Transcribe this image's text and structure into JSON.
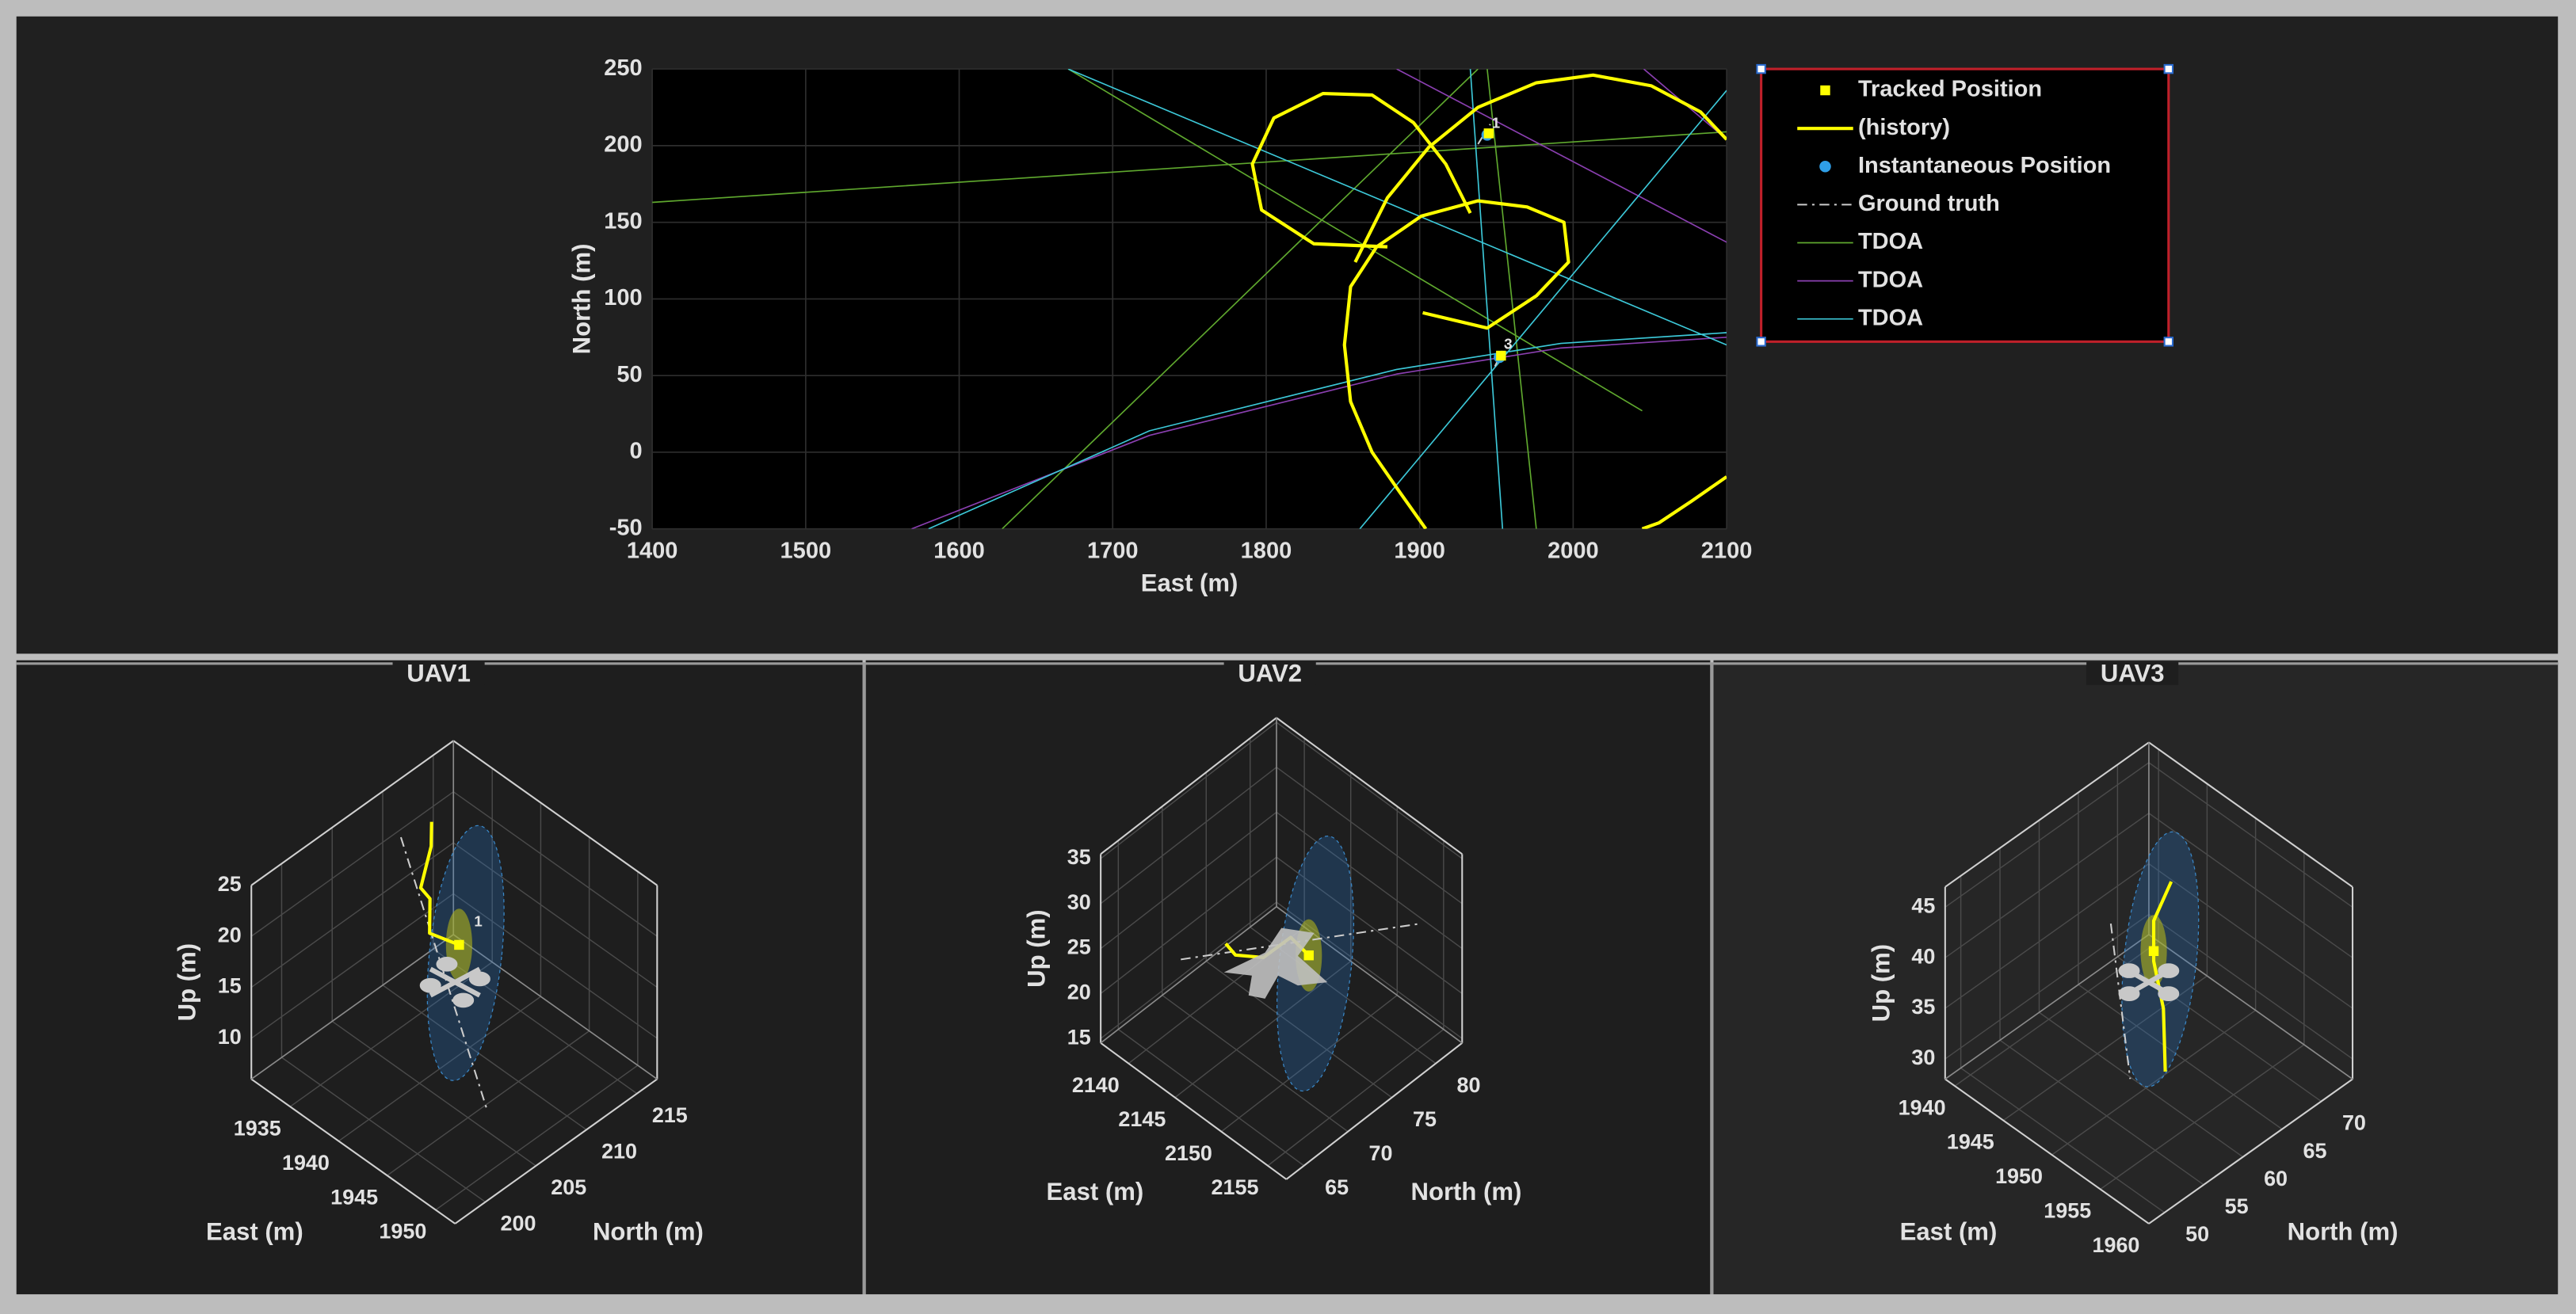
{
  "chart_data": [
    {
      "type": "line",
      "xlabel": "East (m)",
      "ylabel": "North (m)",
      "xlim": [
        1400,
        2100
      ],
      "ylim": [
        -50,
        250
      ],
      "xticks": [
        1400,
        1500,
        1600,
        1700,
        1800,
        1900,
        2000,
        2100
      ],
      "yticks": [
        -50,
        0,
        50,
        100,
        150,
        200,
        250
      ],
      "grid": true,
      "legend": "outside-right",
      "series": [
        {
          "name": "Tracked Position",
          "color": "#ffff00",
          "style": "square",
          "x": [
            1945,
            1953
          ],
          "y": [
            208,
            63
          ]
        },
        {
          "name": "(history)",
          "color": "#ffff00",
          "style": "line",
          "x": [
            1902,
            1944,
            1976,
            1997,
            1994,
            1970,
            1938,
            1901,
            1872,
            1855,
            1851,
            1855,
            1869,
            1887,
            1904,
            null,
            2100,
            2077,
            2056,
            2045,
            null,
            1879,
            1831,
            1797,
            1791,
            1805,
            1837,
            1869,
            1896,
            1917,
            1933,
            null,
            1858,
            1879,
            1906,
            1938,
            1976,
            2013,
            2051,
            2083,
            2100
          ],
          "y": [
            91,
            81,
            102,
            124,
            150,
            160,
            164,
            154,
            134,
            108,
            70,
            33,
            0,
            -26,
            -50,
            null,
            -16,
            -32,
            -46,
            -50,
            null,
            134,
            136,
            158,
            188,
            218,
            234,
            233,
            215,
            188,
            156,
            null,
            124,
            166,
            199,
            225,
            241,
            246,
            239,
            222,
            204
          ]
        },
        {
          "name": "Instantaneous Position",
          "color": "#2f9fe8",
          "style": "circle",
          "x": [
            1944,
            1952
          ],
          "y": [
            207,
            62
          ]
        },
        {
          "name": "Ground truth",
          "color": "#cccccc",
          "style": "dashdot",
          "x": [
            1938,
            1946,
            null,
            1949,
            1956
          ],
          "y": [
            201,
            214,
            null,
            56,
            70
          ]
        },
        {
          "name": "TDOA",
          "color": "#5fa82e",
          "style": "thin",
          "x": [
            1400,
            2100,
            null,
            1628,
            1938,
            null,
            1671,
            2045,
            null,
            1944,
            1976
          ],
          "y": [
            163,
            209,
            null,
            -50,
            250,
            null,
            250,
            27,
            null,
            250,
            -50
          ]
        },
        {
          "name": "TDOA",
          "color": "#8a3fb0",
          "style": "thin",
          "x": [
            1569,
            1724,
            1885,
            1992,
            2100,
            null,
            1885,
            2100,
            null,
            2046,
            2100
          ],
          "y": [
            -50,
            11,
            51,
            68,
            75,
            null,
            250,
            137,
            null,
            250,
            204
          ]
        },
        {
          "name": "TDOA",
          "color": "#3cc8d8",
          "style": "thin",
          "x": [
            1580,
            1724,
            1885,
            1992,
            2100,
            null,
            1671,
            2100,
            null,
            1861,
            2100,
            null,
            1933,
            1954
          ],
          "y": [
            -50,
            14,
            54,
            71,
            78,
            null,
            250,
            70,
            null,
            -50,
            236,
            null,
            250,
            -50
          ]
        }
      ],
      "annotations": [
        {
          "text": "1",
          "x": 1947,
          "y": 214
        },
        {
          "text": "3",
          "x": 1955,
          "y": 70
        }
      ]
    },
    {
      "type": "scatter3",
      "title": "UAV1",
      "xlabel": "East (m)",
      "ylabel": "North (m)",
      "zlabel": "Up (m)",
      "xlim": [
        1931,
        1952
      ],
      "ylim": [
        197,
        217
      ],
      "zlim": [
        6,
        25
      ],
      "xticks": [
        1935,
        1940,
        1945,
        1950
      ],
      "yticks": [
        200,
        205,
        210,
        215
      ],
      "zticks": [
        10,
        15,
        20,
        25
      ],
      "grid": true,
      "series": [
        {
          "color": "#cccccc",
          "style": "dashdot",
          "x": [
            1936,
            1947
          ],
          "y": [
            207,
            205
          ],
          "z": [
            26,
            8
          ]
        },
        {
          "color": "#ffff00",
          "style": "line",
          "x": [
            1942,
            1940,
            1939,
            1937,
            1936,
            1935
          ],
          "y": [
            207,
            206,
            207,
            208,
            210,
            211
          ],
          "z": [
            19.5,
            20,
            22,
            21,
            23,
            24
          ]
        },
        {
          "color": "#ffff00",
          "style": "square",
          "x": [
            1942
          ],
          "y": [
            207
          ],
          "z": [
            19.5
          ]
        }
      ],
      "annotations": [
        {
          "text": "1",
          "x": 1942,
          "y": 208,
          "z": 21
        }
      ]
    },
    {
      "type": "scatter3",
      "title": "UAV2",
      "xlabel": "East (m)",
      "ylabel": "North (m)",
      "zlabel": "Up (m)",
      "xlim": [
        2137,
        2157
      ],
      "ylim": [
        63,
        83
      ],
      "zlim": [
        14.5,
        35.5
      ],
      "xticks": [
        2140,
        2145,
        2150,
        2155
      ],
      "yticks": [
        65,
        70,
        75,
        80
      ],
      "zticks": [
        15,
        20,
        25,
        30,
        35
      ],
      "grid": true,
      "series": [
        {
          "color": "#cccccc",
          "style": "dashdot",
          "x": [
            2139,
            2156
          ],
          "y": [
            70,
            79
          ],
          "z": [
            20,
            30
          ]
        },
        {
          "color": "#ffff00",
          "style": "line",
          "x": [
            2149,
            2148,
            2146,
            2143,
            2141
          ],
          "y": [
            74,
            73,
            72,
            72,
            73
          ],
          "z": [
            25,
            27,
            24,
            22,
            21
          ]
        },
        {
          "color": "#ffff00",
          "style": "square",
          "x": [
            2149
          ],
          "y": [
            74
          ],
          "z": [
            25
          ]
        }
      ]
    },
    {
      "type": "scatter3",
      "title": "UAV3",
      "xlabel": "East (m)",
      "ylabel": "North (m)",
      "zlabel": "Up (m)",
      "xlim": [
        1939,
        1960
      ],
      "ylim": [
        48,
        74
      ],
      "zlim": [
        28,
        47
      ],
      "xticks": [
        1940,
        1945,
        1950,
        1955,
        1960
      ],
      "yticks": [
        50,
        55,
        60,
        65,
        70
      ],
      "zticks": [
        30,
        35,
        40,
        45
      ],
      "grid": true,
      "series": [
        {
          "color": "#cccccc",
          "style": "dashdot",
          "x": [
            1948,
            1950
          ],
          "y": [
            58,
            58
          ],
          "z": [
            44,
            30
          ]
        },
        {
          "color": "#ffff00",
          "style": "line",
          "x": [
            1951,
            1950,
            1950,
            1951,
            1952
          ],
          "y": [
            62,
            61,
            61,
            61,
            60
          ],
          "z": [
            48,
            44,
            40,
            36,
            31
          ]
        },
        {
          "color": "#ffff00",
          "style": "square",
          "x": [
            1950
          ],
          "y": [
            61
          ],
          "z": [
            41
          ]
        }
      ]
    }
  ]
}
